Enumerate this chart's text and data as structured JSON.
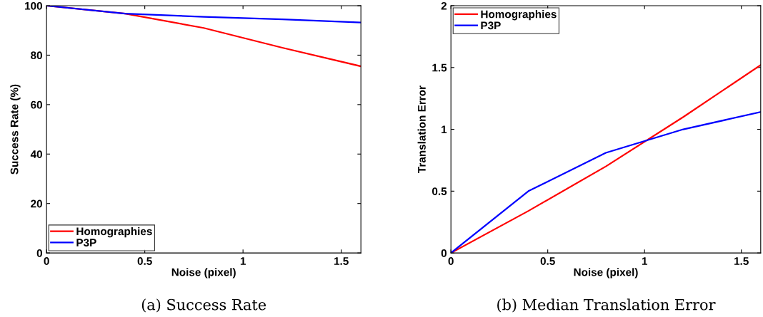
{
  "chart_data": [
    {
      "type": "line",
      "title": "(a) Success Rate",
      "xlabel": "Noise (pixel)",
      "ylabel": "Success Rate (%)",
      "x": [
        0,
        0.4,
        0.8,
        1.2,
        1.6
      ],
      "series": [
        {
          "name": "Homographies",
          "color": "#ff0000",
          "values": [
            100,
            96.8,
            91,
            83,
            75.5
          ]
        },
        {
          "name": "P3P",
          "color": "#0000ff",
          "values": [
            100,
            96.8,
            95.5,
            94.5,
            93.2
          ]
        }
      ],
      "xlim": [
        0,
        1.6
      ],
      "xticks": [
        0,
        0.5,
        1,
        1.5
      ],
      "ylim": [
        0,
        100
      ],
      "yticks": [
        0,
        20,
        40,
        60,
        80,
        100
      ],
      "grid": false,
      "legend": "bottom left"
    },
    {
      "type": "line",
      "title": "(b) Median Translation Error",
      "xlabel": "Noise (pixel)",
      "ylabel": "Translation Error",
      "x": [
        0,
        0.4,
        0.8,
        1.2,
        1.6
      ],
      "series": [
        {
          "name": "Homographies",
          "color": "#ff0000",
          "values": [
            0,
            0.34,
            0.7,
            1.1,
            1.52
          ]
        },
        {
          "name": "P3P",
          "color": "#0000ff",
          "values": [
            0,
            0.5,
            0.81,
            1.0,
            1.14
          ]
        }
      ],
      "xlim": [
        0,
        1.6
      ],
      "xticks": [
        0,
        0.5,
        1,
        1.5
      ],
      "ylim": [
        0,
        2
      ],
      "yticks": [
        0,
        0.5,
        1,
        1.5,
        2
      ],
      "grid": false,
      "legend": "top left"
    }
  ]
}
